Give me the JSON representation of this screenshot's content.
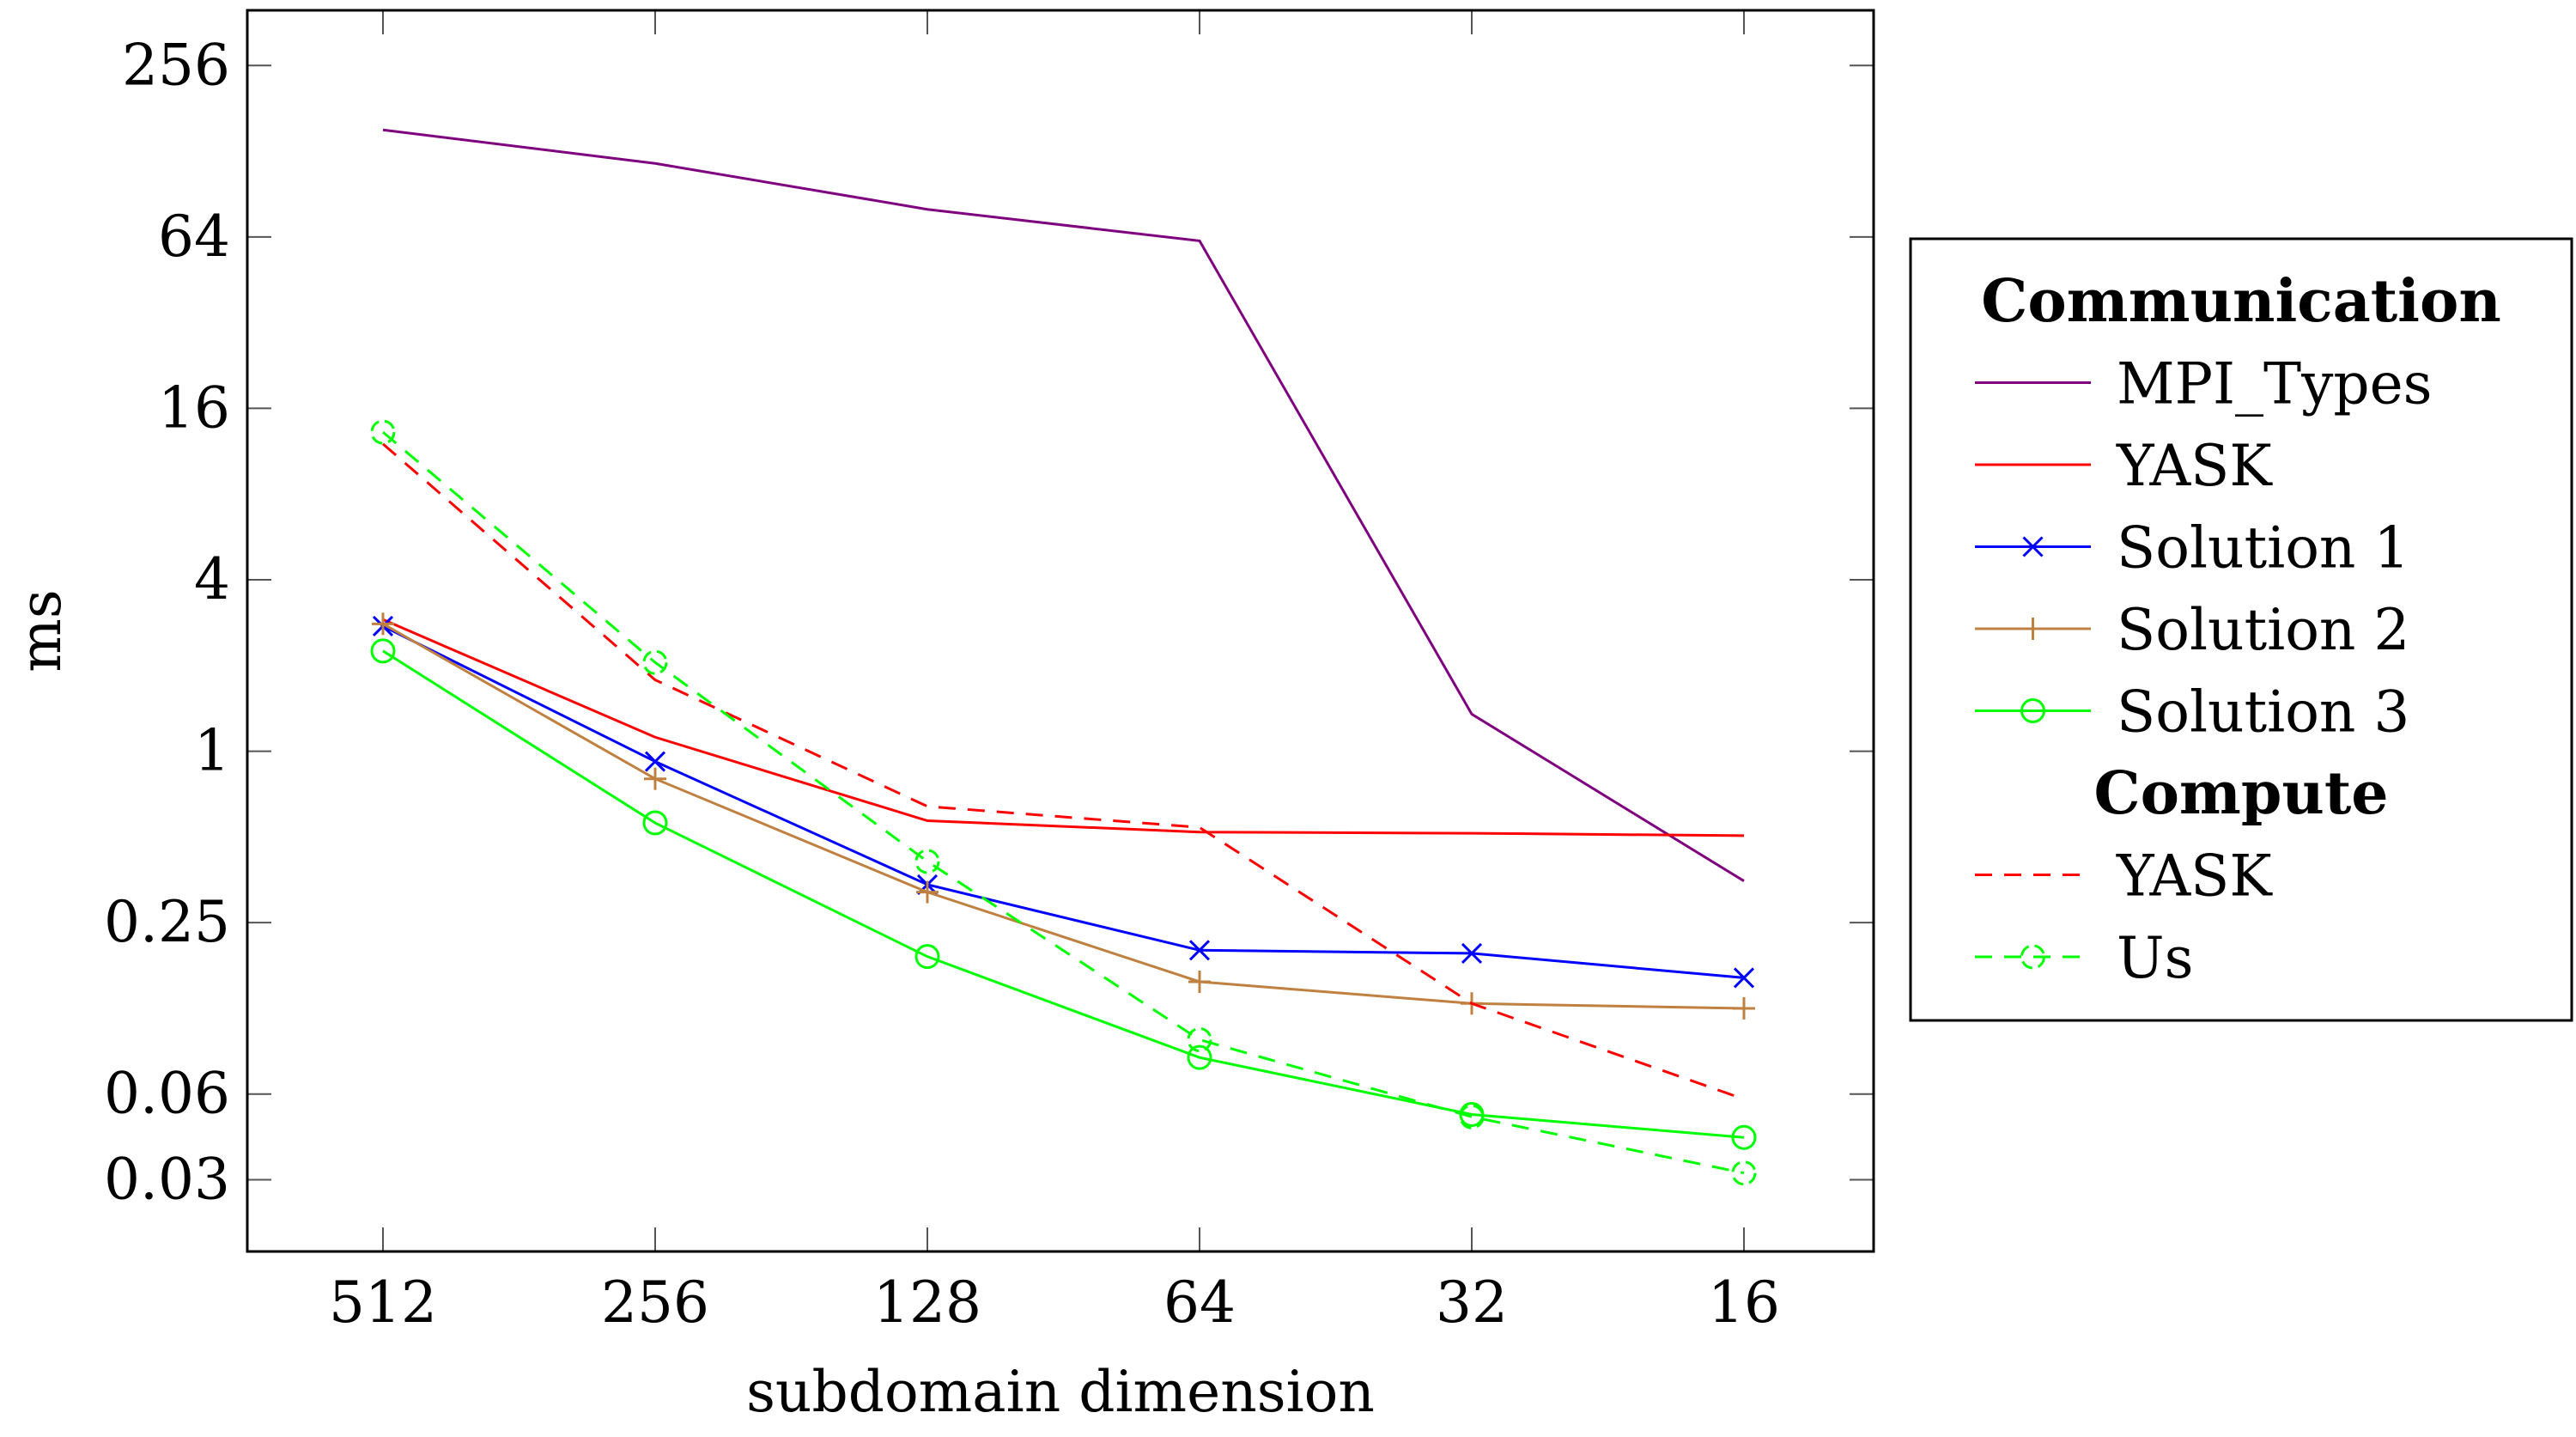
{
  "chart_data": {
    "type": "line",
    "title": "",
    "xlabel": "subdomain dimension",
    "ylabel": "ms",
    "y_scale": "log2",
    "ylim": [
      0.0175,
      400
    ],
    "grid": false,
    "legend_position": "outside-right",
    "categories": [
      "512",
      "256",
      "128",
      "64",
      "32",
      "16"
    ],
    "y_ticks": [
      {
        "value": 256,
        "label": "256"
      },
      {
        "value": 64,
        "label": "64"
      },
      {
        "value": 16,
        "label": "16"
      },
      {
        "value": 4,
        "label": "4"
      },
      {
        "value": 1,
        "label": "1"
      },
      {
        "value": 0.25,
        "label": "0.25"
      },
      {
        "value": 0.0625,
        "label": "0.06"
      },
      {
        "value": 0.03125,
        "label": "0.03"
      }
    ],
    "legend_groups": [
      {
        "title": "Communication",
        "series": [
          "MPI_Types",
          "YASK_comm",
          "Solution 1",
          "Solution 2",
          "Solution 3"
        ]
      },
      {
        "title": "Compute",
        "series": [
          "YASK_compute",
          "Us"
        ]
      }
    ],
    "series": [
      {
        "id": "MPI_Types",
        "name": "MPI_Types",
        "color": "#7f007f",
        "dash": "solid",
        "marker": "none",
        "values": [
          152,
          116,
          80,
          62,
          1.35,
          0.35
        ]
      },
      {
        "id": "YASK_comm",
        "name": "YASK",
        "color": "#ff0000",
        "dash": "solid",
        "marker": "none",
        "values": [
          2.9,
          1.12,
          0.57,
          0.52,
          0.515,
          0.505
        ]
      },
      {
        "id": "Solution 1",
        "name": "Solution 1",
        "color": "#0000ff",
        "dash": "solid",
        "marker": "x",
        "values": [
          2.75,
          0.92,
          0.34,
          0.2,
          0.195,
          0.16
        ]
      },
      {
        "id": "Solution 2",
        "name": "Solution 2",
        "color": "#bf8040",
        "dash": "solid",
        "marker": "plus",
        "values": [
          2.8,
          0.8,
          0.32,
          0.155,
          0.13,
          0.125
        ]
      },
      {
        "id": "Solution 3",
        "name": "Solution 3",
        "color": "#00ff00",
        "dash": "solid",
        "marker": "circle",
        "values": [
          2.25,
          0.56,
          0.19,
          0.084,
          0.053,
          0.044
        ]
      },
      {
        "id": "YASK_compute",
        "name": "YASK",
        "color": "#ff0000",
        "dash": "dashed",
        "marker": "none",
        "values": [
          12,
          1.78,
          0.64,
          0.54,
          0.13,
          0.06
        ]
      },
      {
        "id": "Us",
        "name": "Us",
        "color": "#00ff00",
        "dash": "dashed",
        "marker": "halfcircle",
        "values": [
          13.2,
          2.05,
          0.41,
          0.097,
          0.052,
          0.033
        ]
      }
    ]
  }
}
